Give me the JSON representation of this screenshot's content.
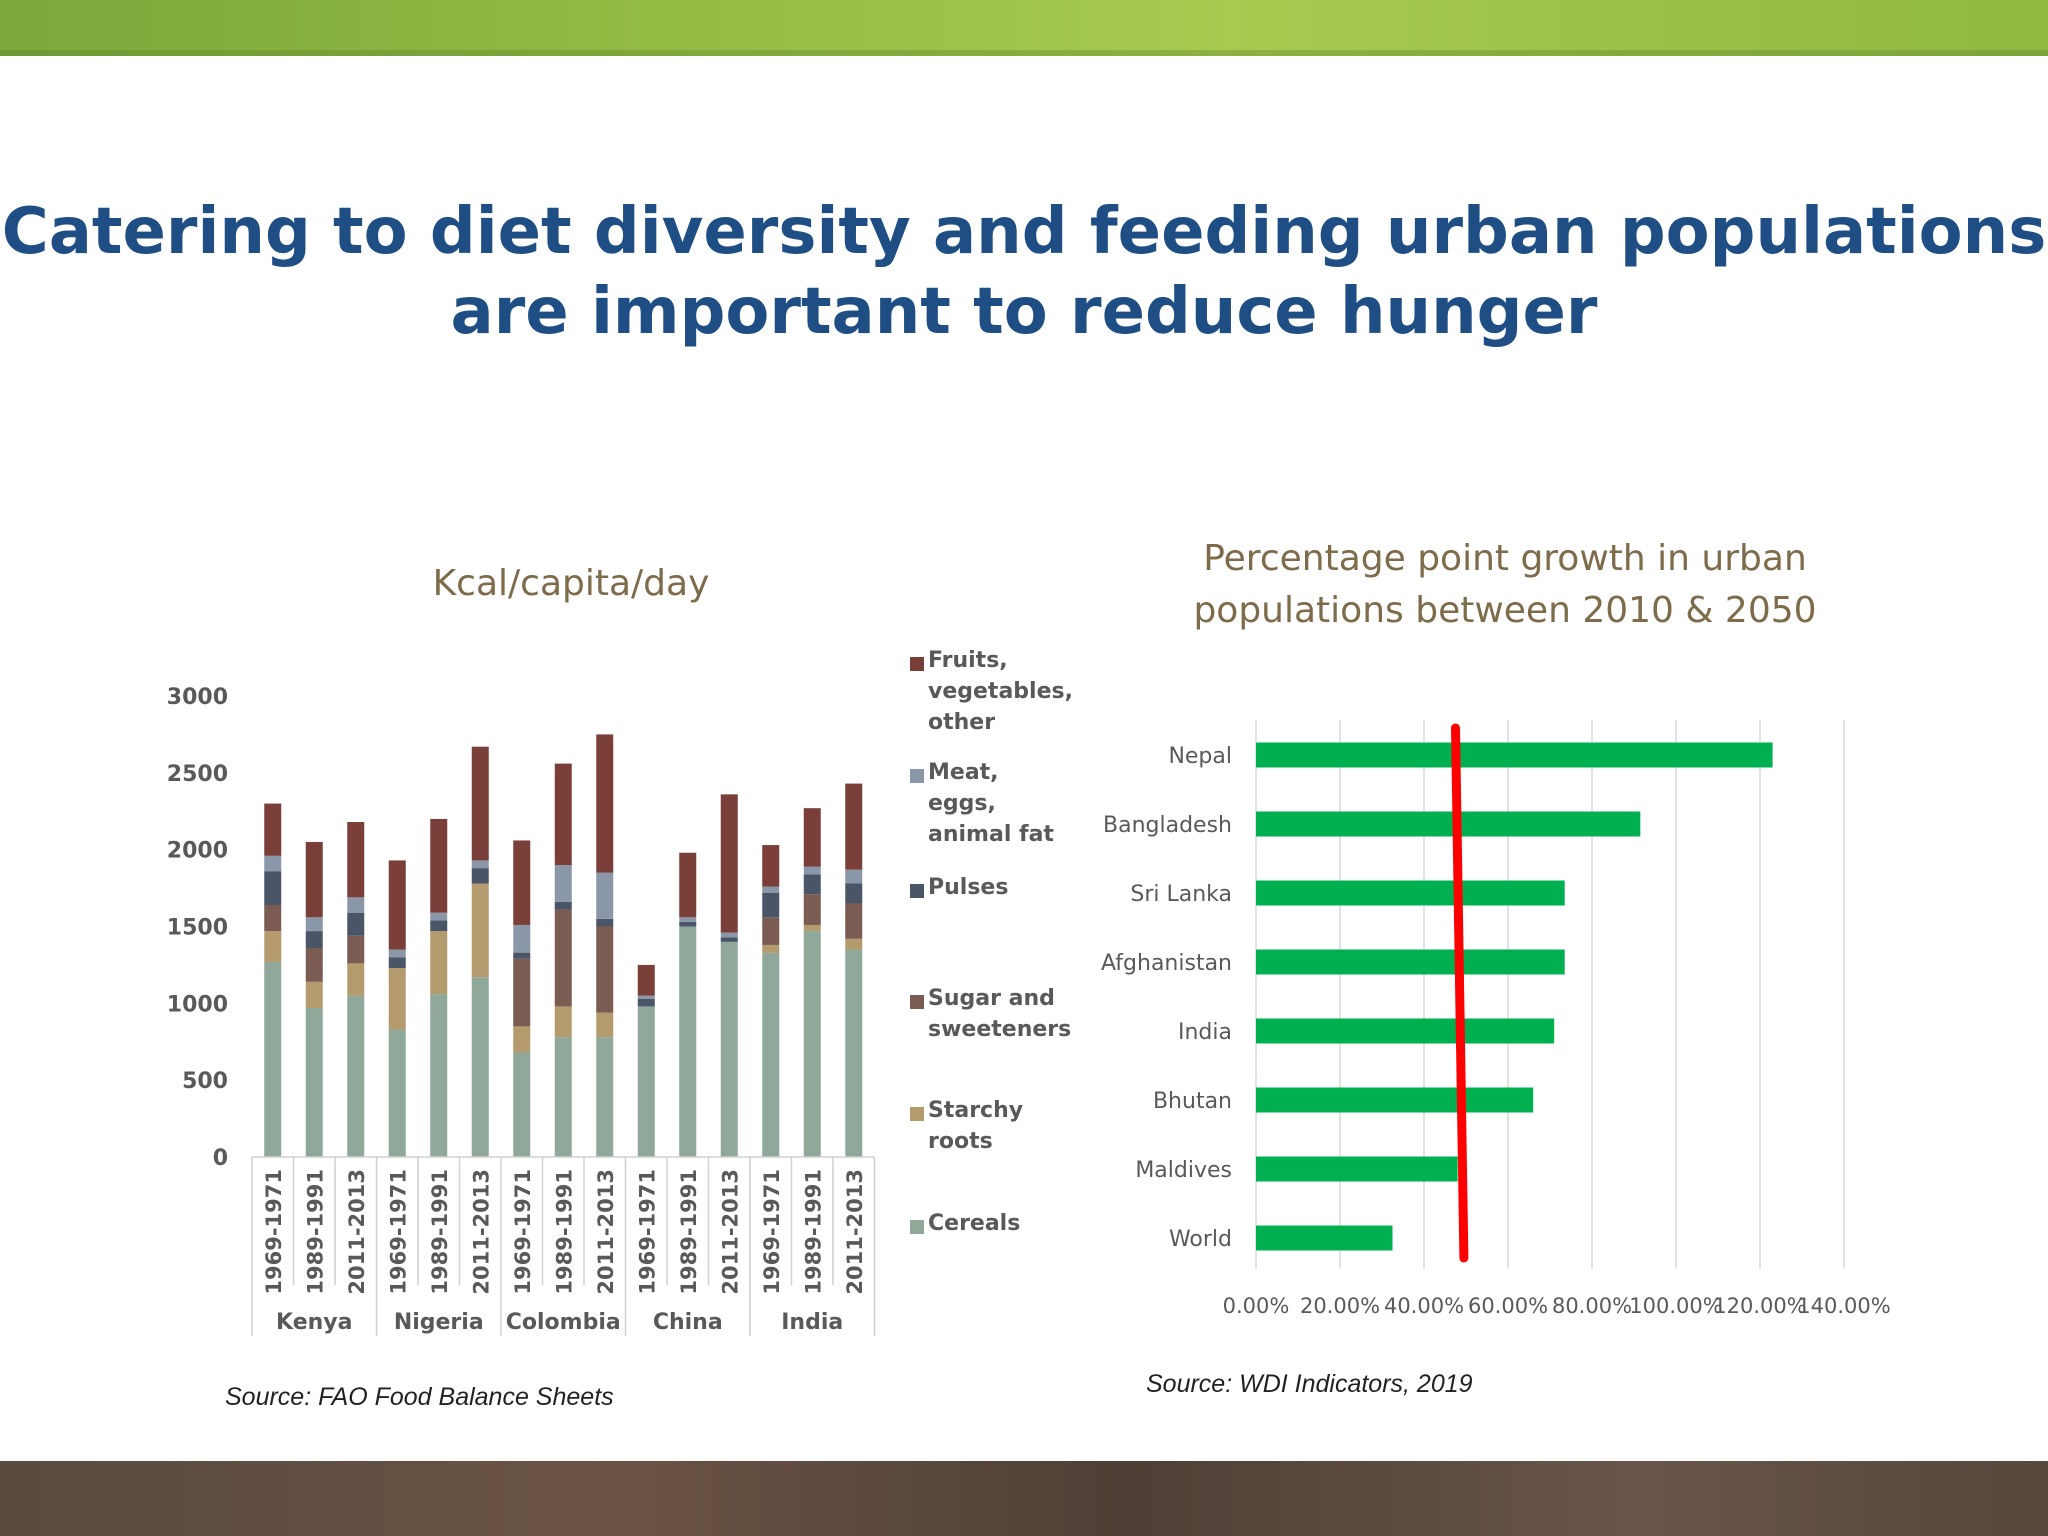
{
  "slide": {
    "title_line1": "Catering to diet diversity and feeding urban populations",
    "title_line2": "are important to reduce hunger",
    "colors": {
      "title": "#1f4e85",
      "chart_title": "#7d6b4a",
      "top_band": "#95bd45",
      "bottom_band": "#5a4a3f"
    }
  },
  "chart_data": [
    {
      "type": "bar",
      "stacked": true,
      "title": "Kcal/capita/day",
      "ylim": [
        0,
        3000
      ],
      "yticks": [
        0,
        500,
        1000,
        1500,
        2000,
        2500,
        3000
      ],
      "groups": [
        "Kenya",
        "Nigeria",
        "Colombia",
        "China",
        "India"
      ],
      "periods": [
        "1969-1971",
        "1989-1991",
        "2011-2013"
      ],
      "categories": [
        "1969-1971",
        "1989-1991",
        "2011-2013",
        "1969-1971",
        "1989-1991",
        "2011-2013",
        "1969-1971",
        "1989-1991",
        "2011-2013",
        "1969-1971",
        "1989-1991",
        "2011-2013",
        "1969-1971",
        "1989-1991",
        "2011-2013"
      ],
      "legend_position": "right",
      "series": [
        {
          "name": "Cereals",
          "color": "#8fa89a",
          "values": [
            1270,
            970,
            1050,
            830,
            1060,
            1170,
            680,
            780,
            780,
            980,
            1500,
            1400,
            1330,
            1470,
            1350
          ]
        },
        {
          "name": "Starchy roots",
          "color": "#b39b6e",
          "values": [
            200,
            170,
            210,
            400,
            410,
            610,
            170,
            200,
            160,
            0,
            0,
            0,
            50,
            40,
            70
          ]
        },
        {
          "name": "Sugar and sweeteners",
          "color": "#7a5c52",
          "values": [
            170,
            220,
            180,
            0,
            0,
            0,
            440,
            630,
            560,
            0,
            0,
            0,
            180,
            200,
            230
          ]
        },
        {
          "name": "Pulses",
          "color": "#4a5568",
          "values": [
            220,
            110,
            150,
            70,
            70,
            100,
            40,
            50,
            50,
            50,
            30,
            30,
            160,
            130,
            130
          ]
        },
        {
          "name": "Meat, eggs, animal fat",
          "color": "#8a97a8",
          "values": [
            100,
            90,
            100,
            50,
            50,
            50,
            180,
            240,
            300,
            20,
            30,
            30,
            40,
            50,
            90
          ]
        },
        {
          "name": "Fruits, vegetables, other",
          "color": "#7b3f3a",
          "values": [
            340,
            490,
            490,
            580,
            610,
            740,
            550,
            660,
            900,
            200,
            420,
            900,
            270,
            380,
            560
          ]
        }
      ],
      "legend_order": [
        "Fruits, vegetables, other",
        "Meat, eggs, animal fat",
        "Pulses",
        "Sugar and sweeteners",
        "Starchy roots",
        "Cereals"
      ],
      "legend_labels": [
        [
          "Fruits,",
          "vegetables,",
          "other"
        ],
        [
          "Meat,",
          "eggs,",
          "animal fat"
        ],
        [
          "Pulses"
        ],
        [
          "Sugar and",
          "sweeteners"
        ],
        [
          "Starchy",
          "roots"
        ],
        [
          "Cereals"
        ]
      ],
      "source": "Source: FAO Food Balance Sheets"
    },
    {
      "type": "bar",
      "orientation": "horizontal",
      "title_line1": "Percentage point growth in urban",
      "title_line2": "populations between 2010 & 2050",
      "categories": [
        "Nepal",
        "Bangladesh",
        "Sri Lanka",
        "Afghanistan",
        "India",
        "Bhutan",
        "Maldives",
        "World"
      ],
      "values": [
        123,
        91.5,
        73.5,
        73.5,
        71,
        66,
        48,
        32.5
      ],
      "bar_color": "#00b050",
      "xlim": [
        0,
        140
      ],
      "xticks": [
        "0.00%",
        "20.00%",
        "40.00%",
        "60.00%",
        "80.00%",
        "100.00%",
        "120.00%",
        "140.00%"
      ],
      "grid": true,
      "reference_line": {
        "color": "#ff0000",
        "x_top": 47.5,
        "x_bottom": 49.5
      },
      "source": "Source: WDI Indicators, 2019"
    }
  ]
}
